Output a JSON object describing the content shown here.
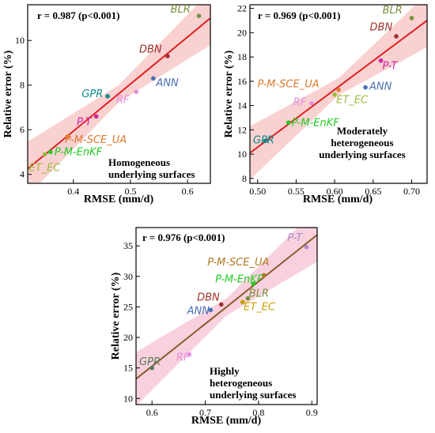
{
  "chart_data": [
    {
      "type": "scatter",
      "xlabel": "RMSE (mm/d)",
      "ylabel": "Relative error (%)",
      "stat": "r = 0.987 (p<0.001)",
      "note": [
        "Homogeneous",
        "underlying surfaces"
      ],
      "xlim": [
        0.32,
        0.64
      ],
      "ylim": [
        3.6,
        11.6
      ],
      "xticks": [
        0.4,
        0.5,
        0.6
      ],
      "yticks": [
        4,
        6,
        8,
        10
      ],
      "fit": {
        "x0": 0.32,
        "y0": 4.25,
        "x1": 0.64,
        "y1": 11.0
      },
      "points": [
        {
          "name": "BLR",
          "x": 0.62,
          "y": 11.1,
          "color": "#76923c"
        },
        {
          "name": "DBN",
          "x": 0.565,
          "y": 9.3,
          "color": "#a0302a"
        },
        {
          "name": "ANN",
          "x": 0.54,
          "y": 8.3,
          "color": "#4a6fb5"
        },
        {
          "name": "RF",
          "x": 0.51,
          "y": 7.7,
          "color": "#e58ee0"
        },
        {
          "name": "GPR",
          "x": 0.46,
          "y": 7.5,
          "color": "#0e8a8a"
        },
        {
          "name": "P-T",
          "x": 0.44,
          "y": 6.6,
          "color": "#d0279a"
        },
        {
          "name": "P-M-SCE_UA",
          "x": 0.39,
          "y": 5.7,
          "color": "#e07b30"
        },
        {
          "name": "P-M-EnKF",
          "x": 0.36,
          "y": 5.0,
          "color": "#22cc22"
        },
        {
          "name": "ET_EC",
          "x": 0.35,
          "y": 4.9,
          "color": "#9bbb3c"
        }
      ]
    },
    {
      "type": "scatter",
      "xlabel": "RMSE (mm/d)",
      "ylabel": "Relative error (%)",
      "stat": "r = 0.969 (p<0.001)",
      "note": [
        "Moderately",
        "heterogeneous",
        "underlying surfaces"
      ],
      "xlim": [
        0.49,
        0.72
      ],
      "ylim": [
        7.6,
        22.3
      ],
      "xticks": [
        0.5,
        0.55,
        0.6,
        0.65,
        0.7
      ],
      "yticks": [
        8,
        10,
        12,
        14,
        16,
        18,
        20,
        22
      ],
      "fit": {
        "x0": 0.49,
        "y0": 10.1,
        "x1": 0.72,
        "y1": 21.0
      },
      "points": [
        {
          "name": "BLR",
          "x": 0.7,
          "y": 21.2,
          "color": "#76923c"
        },
        {
          "name": "DBN",
          "x": 0.68,
          "y": 19.7,
          "color": "#a0302a"
        },
        {
          "name": "P-T",
          "x": 0.66,
          "y": 17.7,
          "color": "#d0279a"
        },
        {
          "name": "ANN",
          "x": 0.64,
          "y": 15.5,
          "color": "#4a6fb5"
        },
        {
          "name": "P-M-SCE_UA",
          "x": 0.605,
          "y": 15.3,
          "color": "#e07b30"
        },
        {
          "name": "ET_EC",
          "x": 0.6,
          "y": 14.9,
          "color": "#9bbb3c"
        },
        {
          "name": "RF",
          "x": 0.57,
          "y": 14.2,
          "color": "#e58ee0"
        },
        {
          "name": "P-M-EnKF",
          "x": 0.54,
          "y": 12.6,
          "color": "#22cc22"
        },
        {
          "name": "GPR",
          "x": 0.51,
          "y": 11.1,
          "color": "#0e8a8a"
        }
      ]
    },
    {
      "type": "scatter",
      "xlabel": "RMSE (mm/d)",
      "ylabel": "Relative error (%)",
      "stat": "r = 0.976 (p<0.001)",
      "note": [
        "Highly",
        "heterogeneous",
        "underlying surfaces"
      ],
      "xlim": [
        0.57,
        0.91
      ],
      "ylim": [
        9,
        38
      ],
      "xticks": [
        0.6,
        0.7,
        0.8,
        0.9
      ],
      "yticks": [
        10,
        15,
        20,
        25,
        30,
        35
      ],
      "fit": {
        "x0": 0.57,
        "y0": 13.2,
        "x1": 0.91,
        "y1": 36.8
      },
      "points": [
        {
          "name": "P-T",
          "x": 0.89,
          "y": 34.8,
          "color": "#b08ec8"
        },
        {
          "name": "P-M-SCE_UA",
          "x": 0.81,
          "y": 30.2,
          "color": "#b07a20"
        },
        {
          "name": "P-M-EnKF",
          "x": 0.79,
          "y": 28.8,
          "color": "#22cc22"
        },
        {
          "name": "BLR",
          "x": 0.78,
          "y": 26.4,
          "color": "#76923c"
        },
        {
          "name": "ET_EC",
          "x": 0.77,
          "y": 25.8,
          "color": "#c8a000"
        },
        {
          "name": "DBN",
          "x": 0.73,
          "y": 25.4,
          "color": "#a0302a"
        },
        {
          "name": "ANN",
          "x": 0.71,
          "y": 24.5,
          "color": "#4a6fb5"
        },
        {
          "name": "RF",
          "x": 0.67,
          "y": 17.2,
          "color": "#e58ee0"
        },
        {
          "name": "GPR",
          "x": 0.6,
          "y": 15.0,
          "color": "#5a7a5a"
        }
      ]
    }
  ]
}
